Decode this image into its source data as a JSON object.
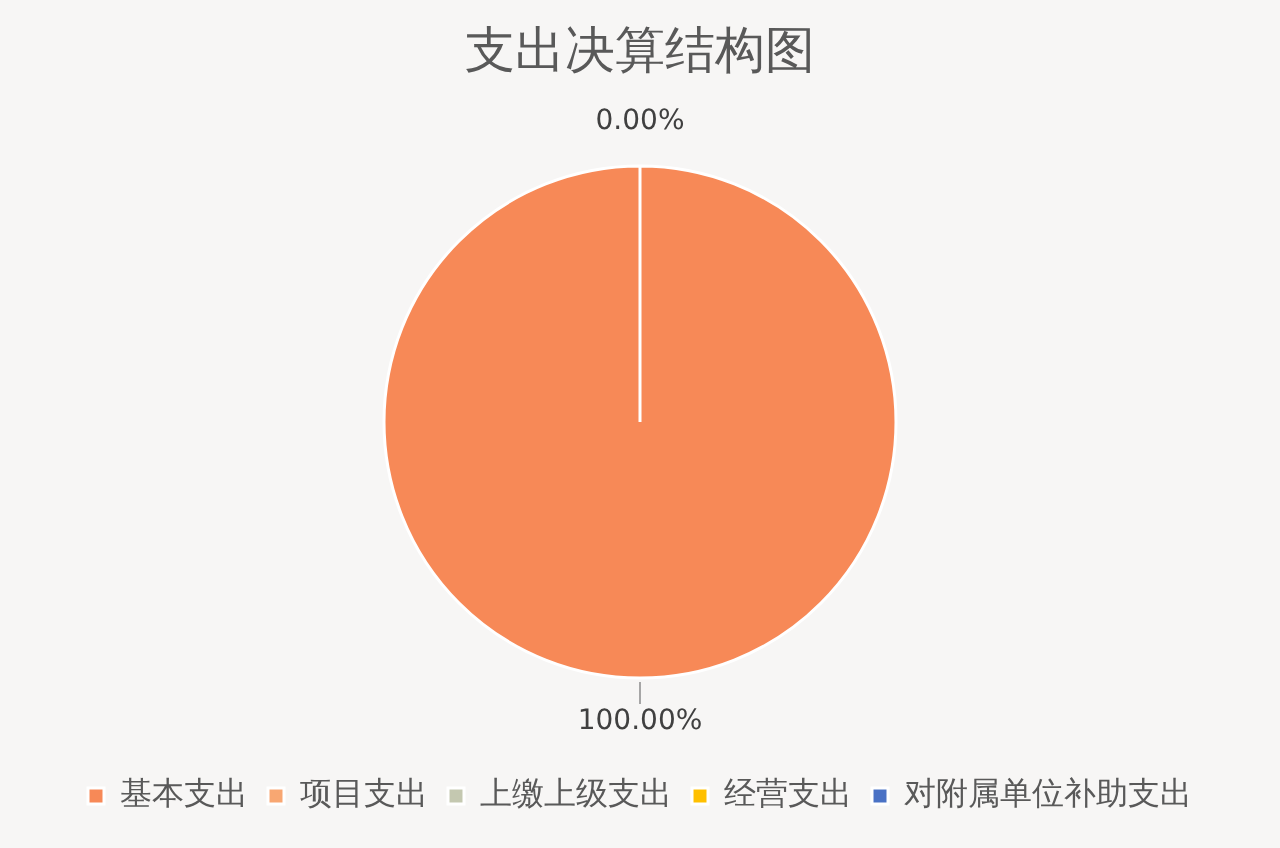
{
  "chart_data": {
    "type": "pie",
    "title": "支出决算结构图",
    "categories": [
      "基本支出",
      "项目支出",
      "上缴上级支出",
      "经营支出",
      "对附属单位补助支出"
    ],
    "values": [
      100,
      0,
      0,
      0,
      0
    ],
    "colors": [
      "#f78957",
      "#f8a772",
      "#c4c8b0",
      "#ffc000",
      "#4a72c5"
    ],
    "value_labels": [
      "100.00%",
      "0.00%",
      null,
      null,
      null
    ],
    "legend": "bottom"
  }
}
